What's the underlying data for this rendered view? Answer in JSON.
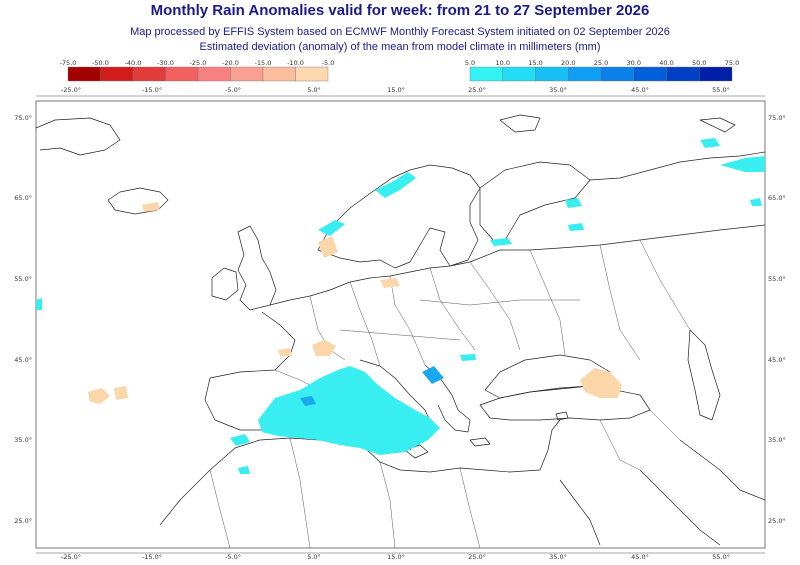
{
  "header": {
    "title": "Monthly Rain Anomalies valid for week: from 21 to 27 September 2026",
    "subtitle1": "Map processed by EFFIS System based on ECMWF Monthly Forecast System initiated on 02 September 2026",
    "subtitle2": "Estimated deviation (anomaly) of the mean from model climate in millimeters (mm)"
  },
  "legend": {
    "negative": {
      "labels": [
        "-75.0",
        "-50.0",
        "-40.0",
        "-30.0",
        "-25.0",
        "-20.0",
        "-15.0",
        "-10.0",
        "-5.0"
      ],
      "colors": [
        "#a50000",
        "#d21c1c",
        "#e23b3b",
        "#f26060",
        "#f78080",
        "#f9a090",
        "#fbbf9f",
        "#fdd8b0"
      ]
    },
    "positive": {
      "labels": [
        "5.0",
        "10.0",
        "15.0",
        "20.0",
        "25.0",
        "30.0",
        "40.0",
        "50.0",
        "75.0"
      ],
      "colors": [
        "#33f2f2",
        "#22ddf5",
        "#18bff5",
        "#109ff2",
        "#0a80ea",
        "#0060da",
        "#0040c5",
        "#001fa8"
      ]
    }
  },
  "axes": {
    "lon_labels": [
      "-25.0°",
      "-15.0°",
      "-5.0°",
      "5.0°",
      "15.0°",
      "25.0°",
      "35.0°",
      "45.0°",
      "55.0°"
    ],
    "lat_labels": [
      "75.0°",
      "65.0°",
      "55.0°",
      "45.0°",
      "35.0°",
      "25.0°"
    ]
  },
  "colors": {
    "wet": "#38eef0",
    "wet_strong": "#1aa8f0",
    "dry": "#fad6a8",
    "dry_strong": "#f5bf90",
    "coast": "#222222",
    "frame": "#555555"
  }
}
